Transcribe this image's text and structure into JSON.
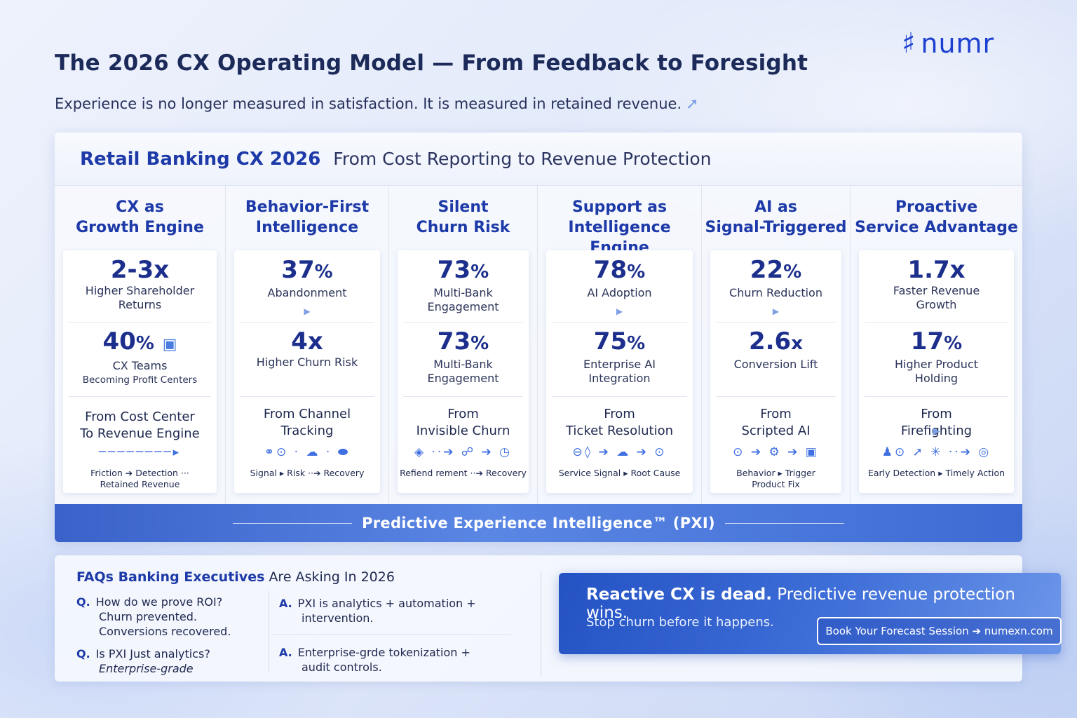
{
  "header": {
    "title": "The 2026 CX Operating Model — From Feedback to Foresight",
    "subtitle": "Experience is no longer measured in satisfaction. It is measured in retained revenue.",
    "logo_text": "numr"
  },
  "panel": {
    "title_strong": "Retail Banking CX 2026",
    "title_light": "From Cost Reporting to Revenue Protection"
  },
  "columns": [
    {
      "title_line1": "CX as",
      "title_line2": "Growth Engine",
      "m1_value": "2-3x",
      "m1_label1": "Higher Shareholder",
      "m1_label2": "Returns",
      "m2_value": "40",
      "m2_unit": "%",
      "m2_label1": "CX Teams",
      "m2_label2": "Becoming Profit Centers",
      "from_prefix": "From Cost Center",
      "from_strong": "To Revenue Engine",
      "flow_icons": "────────▸",
      "flow_line1": "Friction ➔ Detection ···",
      "flow_line2": "Retained Revenue"
    },
    {
      "title_line1": "Behavior-First",
      "title_line2": "Intelligence",
      "m1_value": "37",
      "m1_unit": "%",
      "m1_label1": "Abandonment",
      "m1_label2": "",
      "m2_value": "4x",
      "m2_label1": "Higher Churn Risk",
      "m2_label2": "",
      "from_prefix": "From Channel",
      "from_strong": "Tracking",
      "flow_icons": "⚭⊙ · ☁ · ⬬",
      "flow_line1": "Signal ▸ Risk ··➔ Recovery",
      "flow_line2": ""
    },
    {
      "title_line1": "Silent",
      "title_line2": "Churn Risk",
      "m1_value": "73",
      "m1_unit": "%",
      "m1_label1": "Multi-Bank",
      "m1_label2": "Engagement",
      "m2_value": "73",
      "m2_unit": "%",
      "m2_label1": "Multi-Bank",
      "m2_label2": "Engagement",
      "from_prefix": "From",
      "from_strong": "Invisible Churn",
      "flow_icons": "◈ ··➔ ☍ ➔ ◷",
      "flow_line1": "Refiend rement ··➔ Recovery",
      "flow_line2": ""
    },
    {
      "title_line1": "Support as",
      "title_line2": "Intelligence Engine",
      "m1_value": "78",
      "m1_unit": "%",
      "m1_label1": "AI Adoption",
      "m1_label2": "",
      "m2_value": "75",
      "m2_unit": "%",
      "m2_label1": "Enterprise AI",
      "m2_label2": "Integration",
      "from_prefix": "From",
      "from_strong": "Ticket Resolution",
      "flow_icons": "⊖◊ ➔ ☁ ➔ ⊙",
      "flow_line1": "Service Signal ▸ Root Cause",
      "flow_line2": ""
    },
    {
      "title_line1": "AI as",
      "title_line2": "Signal-Triggered",
      "m1_value": "22",
      "m1_unit": "%",
      "m1_label1": "Churn Reduction",
      "m1_label2": "",
      "m2_value": "2.6",
      "m2_unit": "x",
      "m2_label1": "Conversion Lift",
      "m2_label2": "",
      "from_prefix": "From",
      "from_strong": "Scripted AI",
      "flow_icons": "⊙ ➔ ⚙ ➔ ▣",
      "flow_line1": "Behavior ▸ Trigger",
      "flow_line2": "Product Fix"
    },
    {
      "title_line1": "Proactive",
      "title_line2": "Service Advantage",
      "m1_value": "1.7x",
      "m1_label1": "Faster Revenue",
      "m1_label2": "Growth",
      "m2_value": "17",
      "m2_unit": "%",
      "m2_label1": "Higher Product",
      "m2_label2": "Holding",
      "from_prefix": "From",
      "from_strong": "Firefighting",
      "flow_icons": "♟⊙ ➚ ✳ ··➔ ◎",
      "flow_line1": "Early Detection ▸ Timely Action",
      "flow_line2": ""
    }
  ],
  "ribbon": {
    "text": "Predictive Experience Intelligence™ (PXI)"
  },
  "faq": {
    "title_strong": "FAQs Banking Executives",
    "title_light": "Are Asking In 2026",
    "q1": "How do we prove ROI?",
    "q1_a1": "Churn prevented.",
    "q1_a2": "Conversions recovered.",
    "q2": "Is PXI Just analytics?",
    "q2_a1": "Enterprise-grade",
    "a1_line1": "PXI is analytics + automation +",
    "a1_line2": "intervention.",
    "a2_line1": "Enterprise-grde tokenization +",
    "a2_line2": "audit controls.",
    "q_mark": "Q.",
    "a_mark": "A."
  },
  "cta": {
    "headline_strong": "Reactive CX is dead.",
    "headline_light": "Predictive revenue protection wins.",
    "sub": "Stop churn before it happens.",
    "button": "Book Your Forecast Session ➔ numexn.com"
  }
}
